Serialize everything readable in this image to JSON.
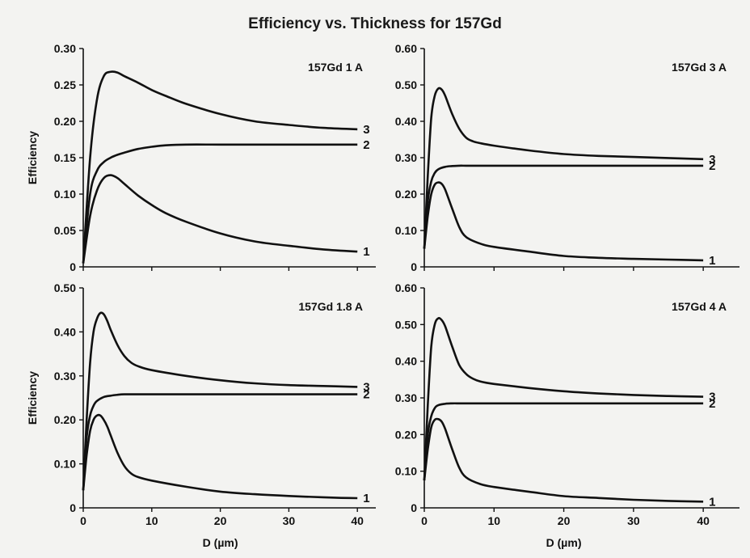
{
  "figure_title": "Efficiency vs. Thickness for 157Gd",
  "chart_data": [
    {
      "type": "line",
      "title": "157Gd 1 A",
      "xlabel": "",
      "ylabel": "Efficiency",
      "xlim": [
        0,
        40
      ],
      "ylim": [
        0,
        0.3
      ],
      "yticks": [
        "0",
        "0.05",
        "0.10",
        "0.15",
        "0.20",
        "0.25",
        "0.30"
      ],
      "xticks": [],
      "series": [
        {
          "name": "1",
          "x": [
            0,
            1,
            2,
            3,
            4,
            5,
            6,
            8,
            10,
            12,
            15,
            20,
            25,
            30,
            35,
            40
          ],
          "y": [
            0.005,
            0.07,
            0.105,
            0.122,
            0.126,
            0.122,
            0.114,
            0.098,
            0.085,
            0.074,
            0.062,
            0.046,
            0.035,
            0.029,
            0.024,
            0.021
          ]
        },
        {
          "name": "2",
          "x": [
            0,
            1,
            2,
            3,
            4,
            5,
            6,
            8,
            10,
            12,
            15,
            20,
            25,
            30,
            35,
            40
          ],
          "y": [
            0.005,
            0.1,
            0.132,
            0.144,
            0.15,
            0.154,
            0.157,
            0.162,
            0.165,
            0.167,
            0.168,
            0.168,
            0.168,
            0.168,
            0.168,
            0.168
          ]
        },
        {
          "name": "3",
          "x": [
            0,
            1,
            2,
            3,
            4,
            5,
            6,
            8,
            10,
            12,
            15,
            20,
            25,
            30,
            35,
            40
          ],
          "y": [
            0.005,
            0.15,
            0.23,
            0.262,
            0.268,
            0.267,
            0.262,
            0.253,
            0.243,
            0.235,
            0.224,
            0.21,
            0.2,
            0.195,
            0.191,
            0.189
          ]
        }
      ]
    },
    {
      "type": "line",
      "title": "157Gd 3 A",
      "xlabel": "",
      "ylabel": "",
      "xlim": [
        0,
        40
      ],
      "ylim": [
        0,
        0.6
      ],
      "yticks": [
        "0",
        "0.10",
        "0.20",
        "0.30",
        "0.40",
        "0.50",
        "0.60"
      ],
      "xticks": [],
      "series": [
        {
          "name": "1",
          "x": [
            0,
            0.5,
            1,
            1.5,
            2,
            2.5,
            3,
            4,
            5,
            6,
            8,
            10,
            15,
            20,
            25,
            30,
            35,
            40
          ],
          "y": [
            0.05,
            0.14,
            0.2,
            0.226,
            0.232,
            0.228,
            0.212,
            0.16,
            0.11,
            0.082,
            0.064,
            0.055,
            0.042,
            0.03,
            0.025,
            0.022,
            0.02,
            0.018
          ]
        },
        {
          "name": "2",
          "x": [
            0,
            0.5,
            1,
            1.5,
            2,
            3,
            4,
            5,
            6,
            8,
            10,
            20,
            30,
            40
          ],
          "y": [
            0.05,
            0.18,
            0.235,
            0.258,
            0.268,
            0.275,
            0.277,
            0.278,
            0.278,
            0.278,
            0.278,
            0.278,
            0.278,
            0.278
          ]
        },
        {
          "name": "3",
          "x": [
            0,
            0.5,
            1,
            1.5,
            2,
            2.5,
            3,
            4,
            5,
            6,
            7,
            8,
            10,
            15,
            20,
            25,
            30,
            35,
            40
          ],
          "y": [
            0.05,
            0.25,
            0.41,
            0.47,
            0.49,
            0.487,
            0.47,
            0.42,
            0.38,
            0.355,
            0.345,
            0.34,
            0.333,
            0.32,
            0.31,
            0.305,
            0.302,
            0.299,
            0.296
          ]
        }
      ]
    },
    {
      "type": "line",
      "title": "157Gd 1.8 A",
      "xlabel": "D (µm)",
      "ylabel": "Efficiency",
      "xlim": [
        0,
        40
      ],
      "ylim": [
        0,
        0.5
      ],
      "yticks": [
        "0",
        "0.10",
        "0.20",
        "0.30",
        "0.40",
        "0.50"
      ],
      "xticks": [
        "0",
        "10",
        "20",
        "30",
        "40"
      ],
      "series": [
        {
          "name": "1",
          "x": [
            0,
            0.5,
            1,
            1.5,
            2,
            2.5,
            3,
            3.5,
            4,
            5,
            6,
            7,
            8,
            10,
            15,
            20,
            25,
            30,
            35,
            40
          ],
          "y": [
            0.04,
            0.12,
            0.175,
            0.2,
            0.21,
            0.21,
            0.2,
            0.185,
            0.165,
            0.125,
            0.095,
            0.078,
            0.07,
            0.062,
            0.048,
            0.037,
            0.031,
            0.027,
            0.024,
            0.022
          ]
        },
        {
          "name": "2",
          "x": [
            0,
            0.5,
            1,
            1.5,
            2,
            3,
            4,
            5,
            6,
            8,
            10,
            20,
            30,
            40
          ],
          "y": [
            0.04,
            0.16,
            0.21,
            0.232,
            0.243,
            0.252,
            0.255,
            0.257,
            0.258,
            0.258,
            0.258,
            0.258,
            0.258,
            0.258
          ]
        },
        {
          "name": "3",
          "x": [
            0,
            0.5,
            1,
            1.5,
            2,
            2.5,
            3,
            3.5,
            4,
            5,
            6,
            7,
            8,
            10,
            15,
            20,
            25,
            30,
            35,
            40
          ],
          "y": [
            0.04,
            0.2,
            0.33,
            0.4,
            0.43,
            0.443,
            0.44,
            0.425,
            0.405,
            0.37,
            0.345,
            0.33,
            0.322,
            0.313,
            0.3,
            0.29,
            0.283,
            0.279,
            0.277,
            0.275
          ]
        }
      ]
    },
    {
      "type": "line",
      "title": "157Gd 4 A",
      "xlabel": "D (µm)",
      "ylabel": "",
      "xlim": [
        0,
        40
      ],
      "ylim": [
        0,
        0.6
      ],
      "yticks": [
        "0",
        "0.10",
        "0.20",
        "0.30",
        "0.40",
        "0.50",
        "0.60"
      ],
      "xticks": [
        "0",
        "10",
        "20",
        "30",
        "40"
      ],
      "series": [
        {
          "name": "1",
          "x": [
            0,
            0.5,
            1,
            1.5,
            2,
            2.5,
            3,
            4,
            5,
            6,
            8,
            10,
            15,
            20,
            25,
            30,
            35,
            40
          ],
          "y": [
            0.075,
            0.16,
            0.22,
            0.24,
            0.242,
            0.235,
            0.215,
            0.16,
            0.11,
            0.083,
            0.065,
            0.057,
            0.044,
            0.032,
            0.027,
            0.022,
            0.019,
            0.017
          ]
        },
        {
          "name": "2",
          "x": [
            0,
            0.5,
            1,
            1.5,
            2,
            3,
            4,
            5,
            6,
            8,
            10,
            20,
            30,
            40
          ],
          "y": [
            0.075,
            0.2,
            0.25,
            0.272,
            0.28,
            0.284,
            0.285,
            0.285,
            0.285,
            0.285,
            0.285,
            0.285,
            0.285,
            0.285
          ]
        },
        {
          "name": "3",
          "x": [
            0,
            0.5,
            1,
            1.5,
            2,
            2.5,
            3,
            4,
            5,
            6,
            7,
            8,
            10,
            15,
            20,
            25,
            30,
            35,
            40
          ],
          "y": [
            0.075,
            0.28,
            0.44,
            0.5,
            0.517,
            0.512,
            0.495,
            0.44,
            0.39,
            0.365,
            0.352,
            0.345,
            0.338,
            0.327,
            0.318,
            0.312,
            0.308,
            0.305,
            0.303
          ]
        }
      ]
    }
  ]
}
